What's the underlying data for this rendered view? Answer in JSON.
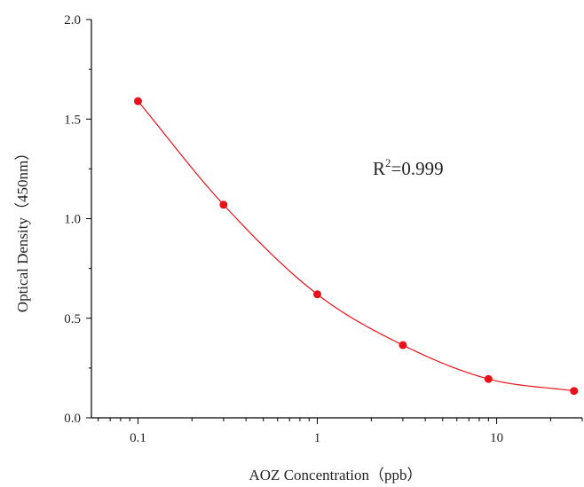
{
  "chart_data": {
    "type": "scatter",
    "xlabel": "AOZ Concentration（ppb）",
    "ylabel": "Optical Density（450nm）",
    "x_scale": "log",
    "xlim": [
      0.055,
      30
    ],
    "ylim": [
      0.0,
      2.0
    ],
    "x_ticks": [
      0.1,
      1,
      10
    ],
    "x_tick_labels": [
      "0.1",
      "1",
      "10"
    ],
    "y_ticks": [
      0.0,
      0.5,
      1.0,
      1.5,
      2.0
    ],
    "y_tick_labels": [
      "0.0",
      "0.5",
      "1.0",
      "1.5",
      "2.0"
    ],
    "grid": false,
    "series": [
      {
        "x": [
          0.1,
          0.3,
          1,
          3,
          9,
          27
        ],
        "y": [
          1.59,
          1.07,
          0.62,
          0.365,
          0.195,
          0.135
        ],
        "color": "#e8121b",
        "fit_curve": true
      }
    ],
    "annotation": {
      "base": "R",
      "superscript": "2",
      "rest": "=0.999"
    }
  }
}
